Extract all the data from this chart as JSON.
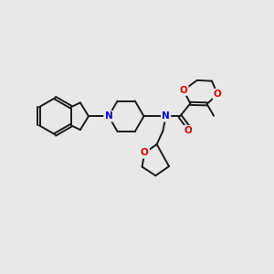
{
  "bg": "#e8e8e8",
  "bc": "#1a1a1a",
  "nc": "#0000dd",
  "oc": "#dd0000",
  "lw": 1.4,
  "fs": 7.5,
  "figsize": [
    3.0,
    3.0
  ],
  "dpi": 100,
  "xlim": [
    -0.5,
    10.5
  ],
  "ylim": [
    -0.5,
    9.5
  ]
}
